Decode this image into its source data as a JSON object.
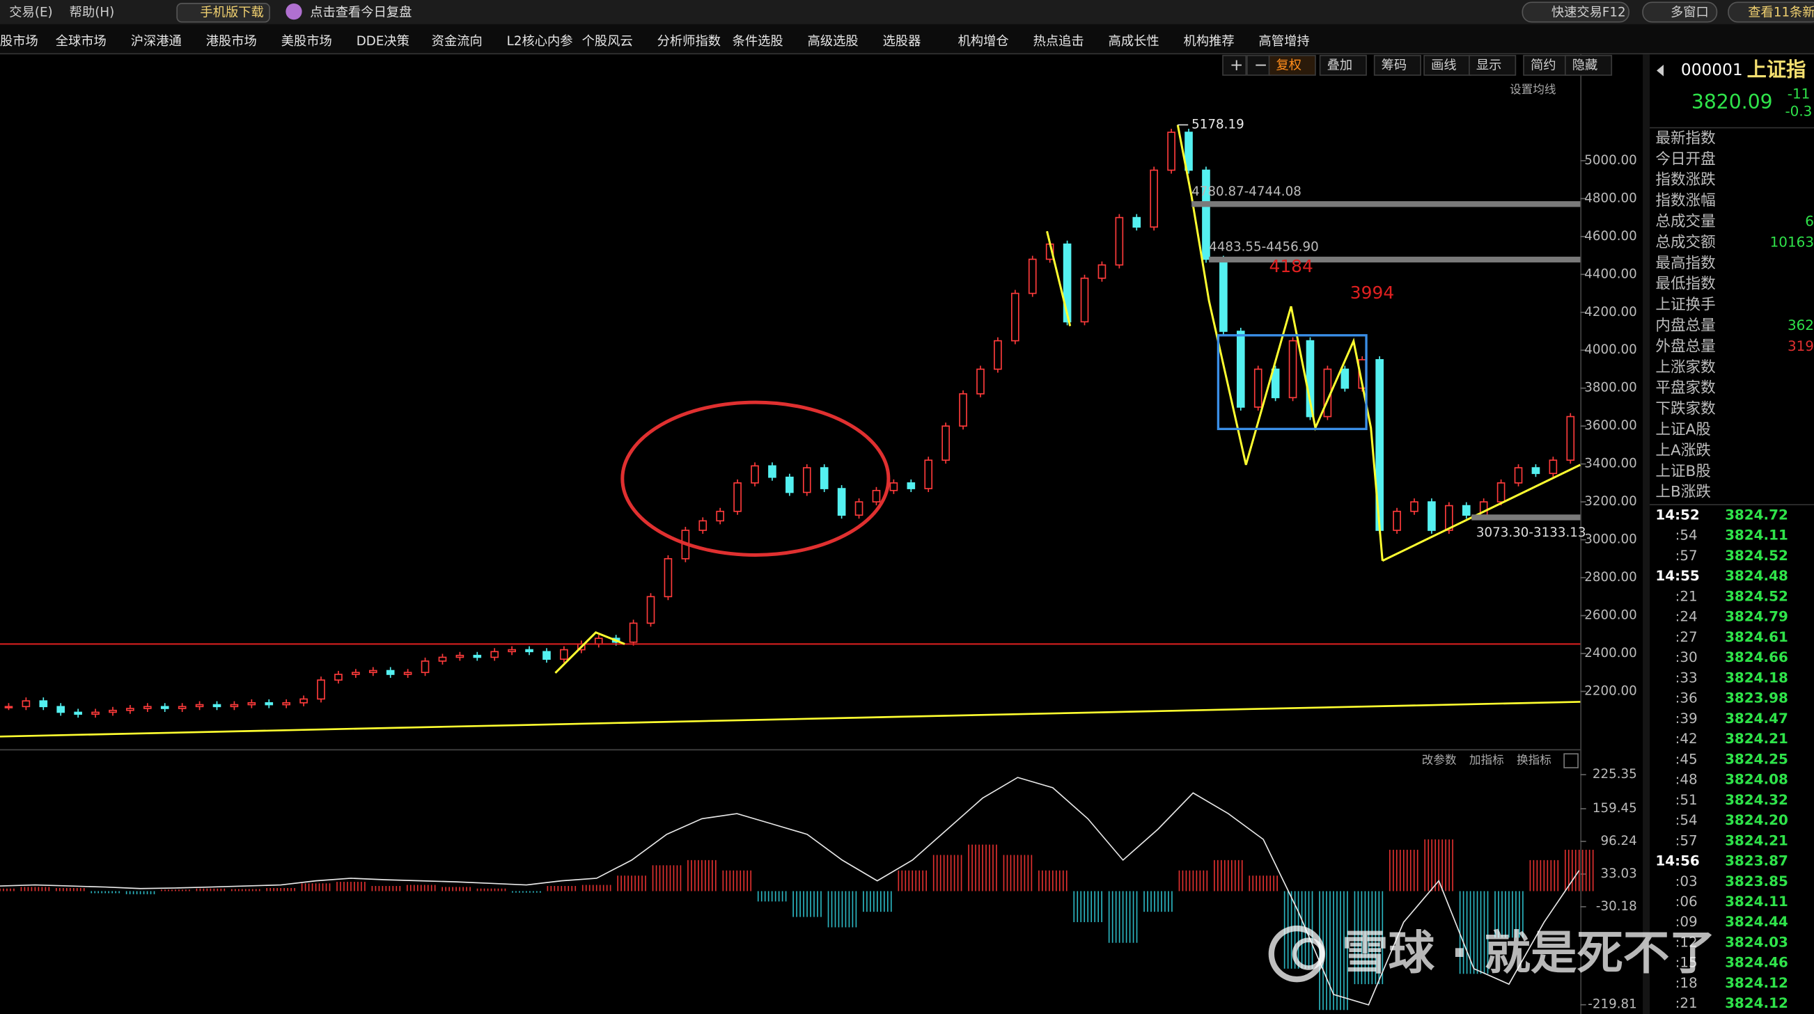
{
  "top_bar": {
    "menus": [
      "交易(E)",
      "帮助(H)"
    ],
    "mobile": "手机版下载",
    "review": "点击查看今日复盘",
    "quick_trade": "快速交易F12",
    "multi_window": "多窗口",
    "news": "查看11条新"
  },
  "nav": [
    "股市场",
    "全球市场",
    "沪深港通",
    "港股市场",
    "美股市场",
    "DDE决策",
    "资金流向",
    "L2核心内参",
    "个股风云",
    "分析师指数",
    "条件选股",
    "高级选股",
    "选股器",
    "机构增仓",
    "热点追击",
    "高成长性",
    "机构推荐",
    "高管增持"
  ],
  "toolbar": [
    "+",
    "−",
    "复权",
    "叠加",
    "筹码",
    "画线",
    "显示",
    "简约",
    "隐藏"
  ],
  "chart_data": [
    {
      "type": "candlestick",
      "ma_setting": "设置均线",
      "up_color": "#ff3b3b",
      "down_color": "#54f0f0",
      "ylim": [
        1895,
        5433
      ],
      "yticks": [
        {
          "value": 2200,
          "label": "2200.00"
        },
        {
          "value": 2400,
          "label": "2400.00"
        },
        {
          "value": 2600,
          "label": "2600.00"
        },
        {
          "value": 2800,
          "label": "2800.00"
        },
        {
          "value": 3000,
          "label": "3000.00"
        },
        {
          "value": 3200,
          "label": "3200.00"
        },
        {
          "value": 3400,
          "label": "3400.00"
        },
        {
          "value": 3600,
          "label": "3600.00"
        },
        {
          "value": 3800,
          "label": "3800.00"
        },
        {
          "value": 4000,
          "label": "4000.00"
        },
        {
          "value": 4200,
          "label": "4200.00"
        },
        {
          "value": 4400,
          "label": "4400.00"
        },
        {
          "value": 4600,
          "label": "4600.00"
        },
        {
          "value": 4800,
          "label": "4800.00"
        },
        {
          "value": 5000,
          "label": "5000.00"
        }
      ],
      "values": [
        2120,
        2150,
        2120,
        2090,
        2080,
        2090,
        2100,
        2110,
        2120,
        2110,
        2120,
        2130,
        2120,
        2130,
        2140,
        2130,
        2140,
        2160,
        2260,
        2290,
        2300,
        2310,
        2290,
        2300,
        2360,
        2380,
        2390,
        2380,
        2410,
        2420,
        2410,
        2370,
        2420,
        2450,
        2480,
        2460,
        2560,
        2700,
        2900,
        3050,
        3100,
        3150,
        3300,
        3390,
        3330,
        3250,
        3380,
        3270,
        3130,
        3200,
        3260,
        3300,
        3270,
        3420,
        3600,
        3770,
        3900,
        4050,
        4300,
        4480,
        4560,
        4150,
        4380,
        4450,
        4700,
        4650,
        4950,
        5150,
        4950,
        4480,
        4100,
        3700,
        3900,
        3750,
        4050,
        3650,
        3900,
        3800,
        3950,
        3050,
        3150,
        3200,
        3050,
        3180,
        3130,
        3200,
        3300,
        3380,
        3350,
        3420,
        3650
      ],
      "peak_label": "5178.19",
      "zones": [
        "4780.87-4744.08",
        "4483.55-4456.90",
        "3073.30-3133.13"
      ],
      "annotations": [
        "4184",
        "3994"
      ]
    },
    {
      "type": "bar",
      "controls": [
        "改参数",
        "加指标",
        "换指标"
      ],
      "up_color": "#e0302f",
      "down_color": "#2bb5c0",
      "ylim": [
        -237.7,
        236.5
      ],
      "yticks": [
        225.35,
        159.45,
        96.24,
        33.03,
        -30.18,
        -219.81
      ],
      "values": [
        5,
        8,
        6,
        -4,
        -6,
        3,
        5,
        4,
        6,
        15,
        18,
        10,
        12,
        8,
        5,
        -3,
        10,
        12,
        30,
        50,
        60,
        40,
        -20,
        -50,
        -70,
        -40,
        40,
        70,
        90,
        70,
        40,
        -60,
        -100,
        -40,
        40,
        60,
        30,
        -150,
        -230,
        -180,
        80,
        100,
        -160,
        -90,
        60,
        80
      ],
      "line": {
        "color": "#e8e8e8",
        "values": [
          10,
          12,
          10,
          8,
          5,
          6,
          8,
          10,
          12,
          20,
          25,
          22,
          20,
          18,
          15,
          12,
          20,
          25,
          60,
          110,
          140,
          150,
          130,
          110,
          60,
          20,
          60,
          120,
          180,
          220,
          200,
          140,
          60,
          120,
          190,
          150,
          100,
          -40,
          -200,
          -220,
          -60,
          20,
          -150,
          -180,
          -60,
          40
        ]
      }
    }
  ],
  "quote": {
    "code": "000001",
    "name": "上证指",
    "price": "3820.09",
    "change": "-11",
    "change_pct": "-0.3",
    "fields": [
      [
        "最新指数",
        ""
      ],
      [
        "今日开盘",
        ""
      ],
      [
        "指数涨跌",
        ""
      ],
      [
        "指数涨幅",
        ""
      ],
      [
        "总成交量",
        "6"
      ],
      [
        "总成交额",
        "10163"
      ],
      [
        "最高指数",
        ""
      ],
      [
        "最低指数",
        ""
      ],
      [
        "上证换手",
        ""
      ],
      [
        "内盘总量",
        "362"
      ],
      [
        "外盘总量",
        "319"
      ],
      [
        "上涨家数",
        ""
      ],
      [
        "平盘家数",
        ""
      ],
      [
        "下跌家数",
        ""
      ],
      [
        "上证A股",
        ""
      ],
      [
        "上A涨跌",
        ""
      ],
      [
        "上证B股",
        ""
      ],
      [
        "上B涨跌",
        ""
      ]
    ],
    "ticks": [
      [
        "14:52",
        "3824.72"
      ],
      [
        ":54",
        "3824.11"
      ],
      [
        ":57",
        "3824.52"
      ],
      [
        "14:55",
        "3824.48"
      ],
      [
        ":21",
        "3824.52"
      ],
      [
        ":24",
        "3824.79"
      ],
      [
        ":27",
        "3824.61"
      ],
      [
        ":30",
        "3824.66"
      ],
      [
        ":33",
        "3824.18"
      ],
      [
        ":36",
        "3823.98"
      ],
      [
        ":39",
        "3824.47"
      ],
      [
        ":42",
        "3824.21"
      ],
      [
        ":45",
        "3824.25"
      ],
      [
        ":48",
        "3824.08"
      ],
      [
        ":51",
        "3824.32"
      ],
      [
        ":54",
        "3824.20"
      ],
      [
        ":57",
        "3824.21"
      ],
      [
        "14:56",
        "3823.87"
      ],
      [
        ":03",
        "3823.85"
      ],
      [
        ":06",
        "3824.11"
      ],
      [
        ":09",
        "3824.44"
      ],
      [
        ":12",
        "3824.03"
      ],
      [
        ":15",
        "3824.46"
      ],
      [
        ":18",
        "3824.12"
      ],
      [
        ":21",
        "3824.12"
      ]
    ]
  },
  "watermark": "雪球 · 就是死不了"
}
